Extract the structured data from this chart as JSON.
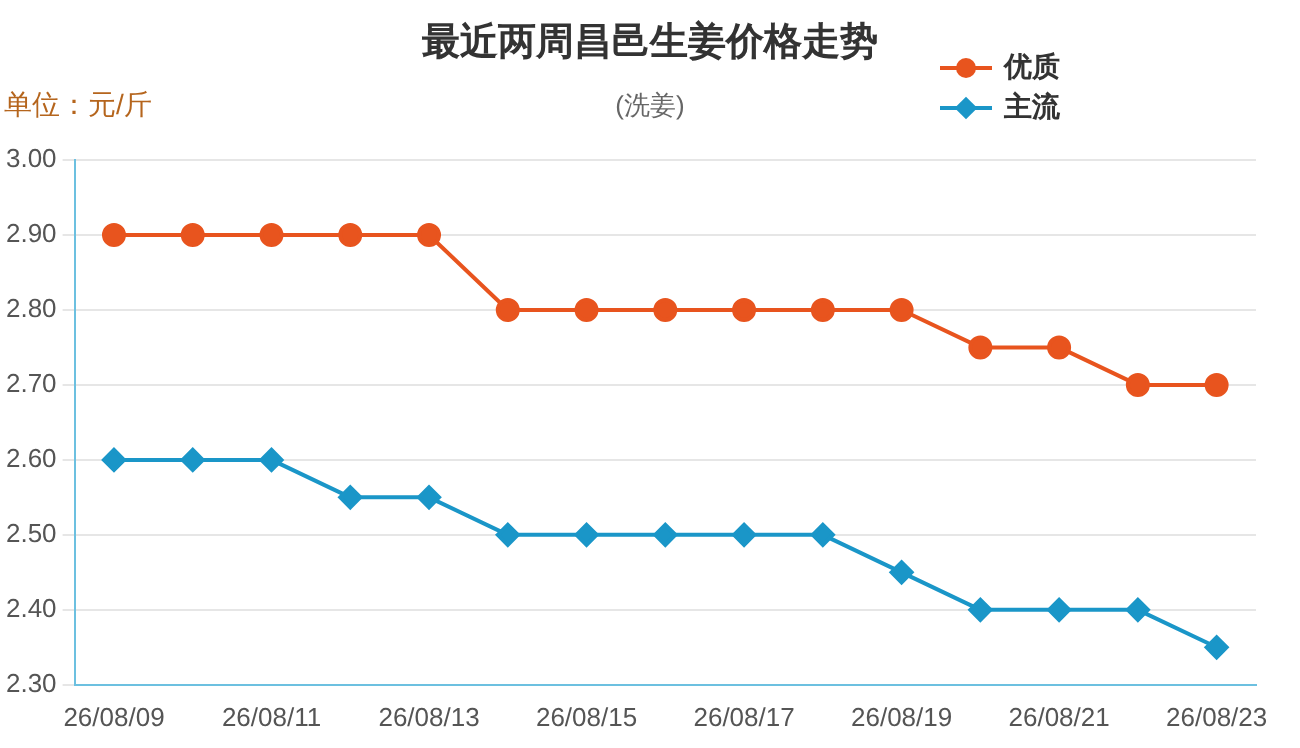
{
  "chart_data": {
    "type": "line",
    "title": "最近两周昌邑生姜价格走势",
    "subtitle": "(洗姜)",
    "ylabel": "单位：元/斤",
    "categories": [
      "26/08/09",
      null,
      "26/08/11",
      null,
      "26/08/13",
      null,
      "26/08/15",
      null,
      "26/08/17",
      null,
      "26/08/19",
      null,
      "26/08/21",
      null,
      "26/08/23"
    ],
    "series": [
      {
        "name": "优质",
        "color": "#e8541e",
        "marker": "circle",
        "values": [
          2.9,
          2.9,
          2.9,
          2.9,
          2.9,
          2.8,
          2.8,
          2.8,
          2.8,
          2.8,
          2.8,
          2.75,
          2.75,
          2.7,
          2.7
        ]
      },
      {
        "name": "主流",
        "color": "#1a96c8",
        "marker": "diamond",
        "values": [
          2.6,
          2.6,
          2.6,
          2.55,
          2.55,
          2.5,
          2.5,
          2.5,
          2.5,
          2.5,
          2.45,
          2.4,
          2.4,
          2.4,
          2.35
        ]
      }
    ],
    "ylim": [
      2.3,
      3.0
    ],
    "yticks": [
      {
        "value": 2.3,
        "label": "2.30"
      },
      {
        "value": 2.4,
        "label": "2.40"
      },
      {
        "value": 2.5,
        "label": "2.50"
      },
      {
        "value": 2.6,
        "label": "2.60"
      },
      {
        "value": 2.7,
        "label": "2.70"
      },
      {
        "value": 2.8,
        "label": "2.80"
      },
      {
        "value": 2.9,
        "label": "2.90"
      },
      {
        "value": 3.0,
        "label": "3.00"
      }
    ],
    "grid": "y",
    "legend": "top right",
    "line_style": "solid"
  }
}
